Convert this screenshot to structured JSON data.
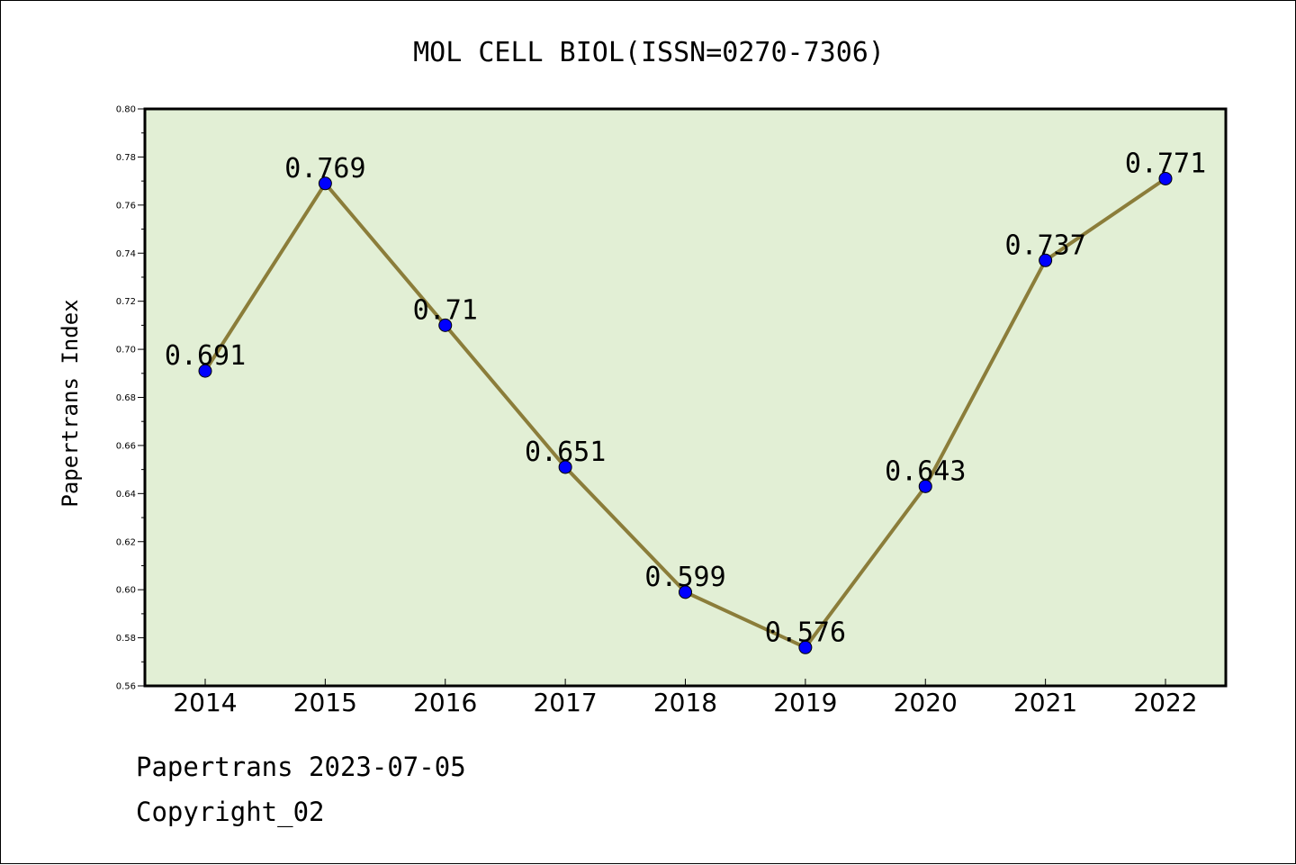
{
  "chart_data": {
    "type": "line",
    "title": "MOL CELL BIOL(ISSN=0270-7306)",
    "xlabel": "",
    "ylabel": "Papertrans Index",
    "categories": [
      "2014",
      "2015",
      "2016",
      "2017",
      "2018",
      "2019",
      "2020",
      "2021",
      "2022"
    ],
    "values": [
      0.691,
      0.769,
      0.71,
      0.651,
      0.599,
      0.576,
      0.643,
      0.737,
      0.771
    ],
    "value_labels": [
      "0.691",
      "0.769",
      "0.71",
      "0.651",
      "0.599",
      "0.576",
      "0.643",
      "0.737",
      "0.771"
    ],
    "ylim": [
      0.56,
      0.8
    ],
    "yticks": [
      "0.56",
      "0.58",
      "0.60",
      "0.62",
      "0.64",
      "0.66",
      "0.68",
      "0.70",
      "0.72",
      "0.74",
      "0.76",
      "0.78",
      "0.80"
    ],
    "grid": false,
    "legend": "none",
    "colors": {
      "plot_background": "#e2efd5",
      "line": "#8b7d3a",
      "marker": "#0000ff"
    }
  },
  "footer": {
    "line1": "Papertrans 2023-07-05",
    "line2": "Copyright_02"
  }
}
